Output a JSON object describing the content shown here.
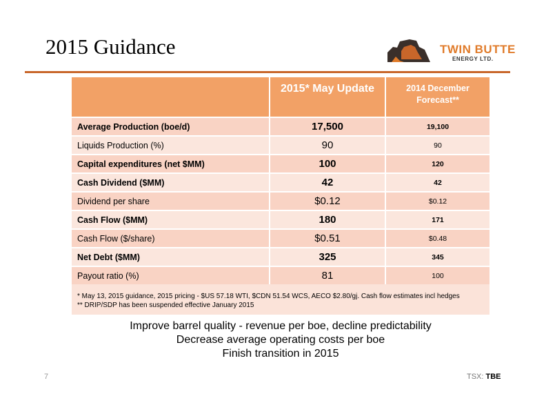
{
  "slide": {
    "title": "2015 Guidance",
    "page_number": "7",
    "ticker_prefix": "TSX:",
    "ticker_symbol": "TBE"
  },
  "logo": {
    "line1": "TWIN BUTTE",
    "line2": "ENERGY LTD.",
    "colors": {
      "orange": "#e07b2a",
      "dark": "#3a2f2a"
    }
  },
  "table": {
    "headers": [
      "",
      "2015* May Update",
      "2014 December Forecast**"
    ],
    "header_color": "#f2a166",
    "rows": [
      {
        "label": "Average Production (boe/d)",
        "may": "17,500",
        "dec": "19,100",
        "bold": true
      },
      {
        "label": "Liquids Production (%)",
        "may": "90",
        "dec": "90",
        "bold": false
      },
      {
        "label": "Capital expenditures (net $MM)",
        "may": "100",
        "dec": "120",
        "bold": true
      },
      {
        "label": "Cash Dividend ($MM)",
        "may": "42",
        "dec": "42",
        "bold": true
      },
      {
        "label": "Dividend per share",
        "may": "$0.12",
        "dec": "$0.12",
        "bold": false
      },
      {
        "label": "Cash Flow ($MM)",
        "may": "180",
        "dec": "171",
        "bold": true
      },
      {
        "label": "Cash Flow ($/share)",
        "may": "$0.51",
        "dec": "$0.48",
        "bold": false
      },
      {
        "label": "Net Debt ($MM)",
        "may": "325",
        "dec": "345",
        "bold": true
      },
      {
        "label": "Payout ratio (%)",
        "may": "81",
        "dec": "100",
        "bold": false
      }
    ]
  },
  "footnotes": [
    "* May 13, 2015 guidance, 2015 pricing - $US 57.18 WTI, $CDN 51.54 WCS, AECO $2.80/gj. Cash flow estimates incl hedges",
    "** DRIP/SDP has been suspended effective January 2015"
  ],
  "bullets": [
    "Improve barrel quality - revenue per boe, decline predictability",
    "Decrease average operating costs per boe",
    "Finish transition in 2015"
  ]
}
